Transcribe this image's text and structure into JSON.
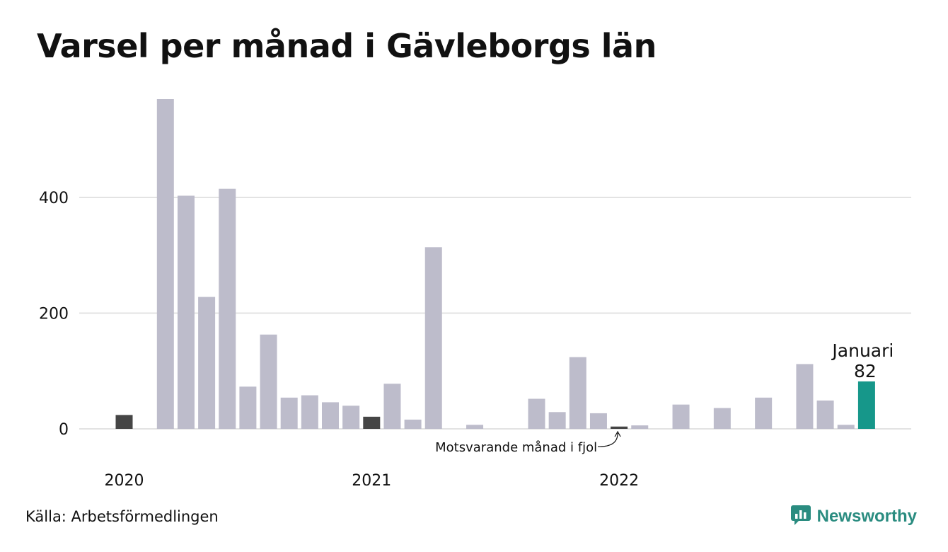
{
  "title": "Varsel per månad i Gävleborgs län",
  "source": "Källa: Arbetsförmedlingen",
  "brand": {
    "name": "Newsworthy",
    "icon": "bar-chart-logo-icon"
  },
  "colors": {
    "default": "#bdbccb",
    "previous": "#454545",
    "current": "#16978a",
    "grid": "#e3e3e3",
    "brand": "#2a8c80"
  },
  "chart_data": {
    "type": "bar",
    "title": "Varsel per månad i Gävleborgs län",
    "xlabel": "",
    "ylabel": "",
    "ylim": [
      0,
      570
    ],
    "yticks": [
      0,
      200,
      400
    ],
    "grid": true,
    "xticks": [
      "2020",
      "2021",
      "2022"
    ],
    "categories": [
      "2020-01",
      "2020-02",
      "2020-03",
      "2020-04",
      "2020-05",
      "2020-06",
      "2020-07",
      "2020-08",
      "2020-09",
      "2020-10",
      "2020-11",
      "2020-12",
      "2021-01",
      "2021-02",
      "2021-03",
      "2021-04",
      "2021-05",
      "2021-06",
      "2021-07",
      "2021-08",
      "2021-09",
      "2021-10",
      "2021-11",
      "2021-12",
      "2022-01",
      "2022-02",
      "2022-03",
      "2022-04",
      "2022-05",
      "2022-06",
      "2022-07",
      "2022-08",
      "2022-09",
      "2022-10",
      "2022-11",
      "2022-12",
      "2023-01"
    ],
    "values": [
      24,
      0,
      570,
      403,
      228,
      415,
      73,
      163,
      54,
      58,
      46,
      40,
      21,
      78,
      16,
      314,
      0,
      7,
      0,
      0,
      52,
      29,
      124,
      27,
      4,
      6,
      0,
      42,
      0,
      36,
      0,
      54,
      0,
      112,
      49,
      7,
      82
    ],
    "highlight": {
      "previous": [
        "2020-01",
        "2021-01",
        "2022-01"
      ],
      "current": "2023-01"
    },
    "annotations": {
      "current_label": "Januari",
      "current_value": "82",
      "previous_note": "Motsvarande månad i fjol"
    }
  }
}
